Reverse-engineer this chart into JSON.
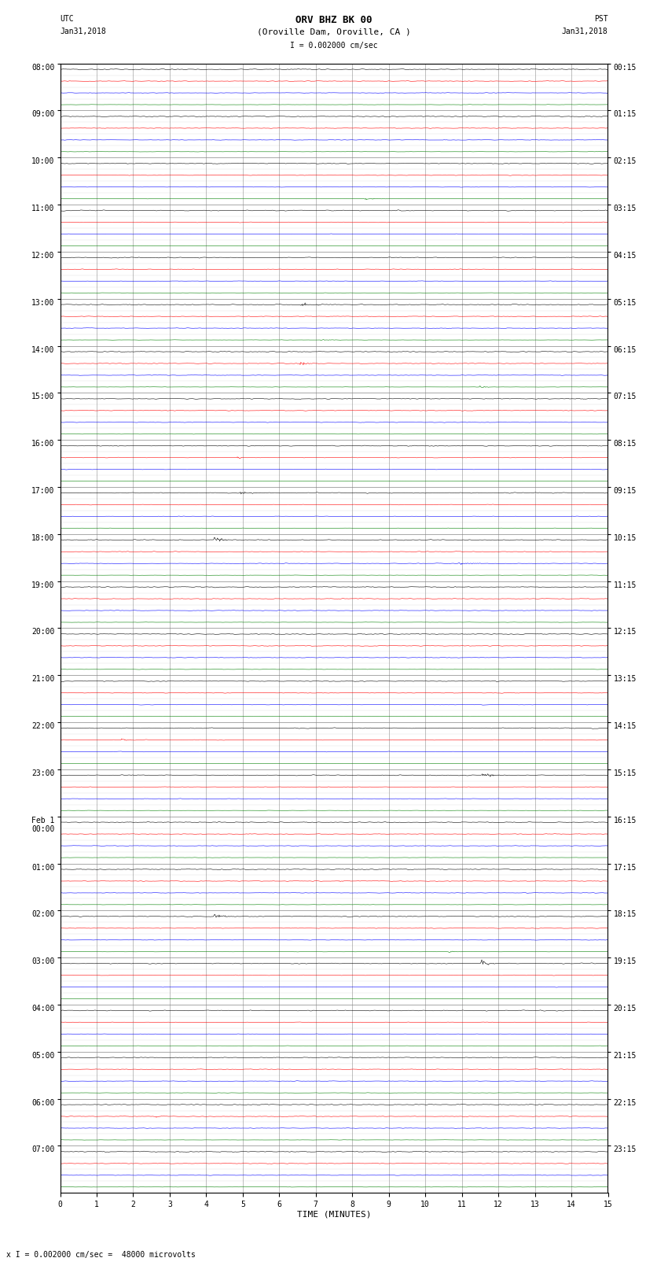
{
  "title_line1": "ORV BHZ BK 00",
  "title_line2": "(Oroville Dam, Oroville, CA )",
  "scale_text": "I = 0.002000 cm/sec",
  "footer_text": "x I = 0.002000 cm/sec =  48000 microvolts",
  "left_label_line1": "UTC",
  "left_label_line2": "Jan31,2018",
  "right_label_line1": "PST",
  "right_label_line2": "Jan31,2018",
  "xlabel": "TIME (MINUTES)",
  "trace_colors": [
    "black",
    "red",
    "blue",
    "green"
  ],
  "background_color": "white",
  "grid_color": "#808080",
  "num_hours": 24,
  "traces_per_hour": 4,
  "minutes_per_row": 15,
  "fig_width": 8.5,
  "fig_height": 16.13,
  "left_times_utc": [
    "08:00",
    "09:00",
    "10:00",
    "11:00",
    "12:00",
    "13:00",
    "14:00",
    "15:00",
    "16:00",
    "17:00",
    "18:00",
    "19:00",
    "20:00",
    "21:00",
    "22:00",
    "23:00",
    "Feb 1\n00:00",
    "01:00",
    "02:00",
    "03:00",
    "04:00",
    "05:00",
    "06:00",
    "07:00"
  ],
  "right_times_pst": [
    "00:15",
    "01:15",
    "02:15",
    "03:15",
    "04:15",
    "05:15",
    "06:15",
    "07:15",
    "08:15",
    "09:15",
    "10:15",
    "11:15",
    "12:15",
    "13:15",
    "14:15",
    "15:15",
    "16:15",
    "17:15",
    "18:15",
    "19:15",
    "20:15",
    "21:15",
    "22:15",
    "23:15"
  ],
  "noise_amplitudes": [
    0.08,
    0.06,
    0.05,
    0.03
  ],
  "trace_amplitude_scale": 0.38
}
